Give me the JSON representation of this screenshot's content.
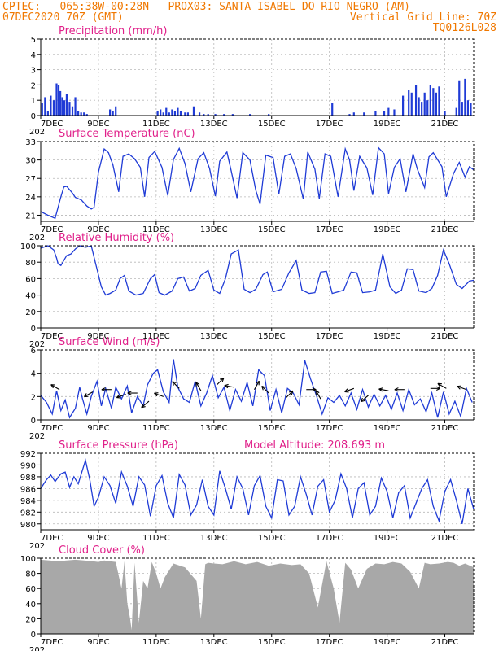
{
  "header": {
    "line1_left": "CPTEC:",
    "line1_coords": "065:38W-00:28N",
    "line1_site": "PROX03: SANTA ISABEL DO RIO NEGRO (AM)",
    "line2_left": "07DEC2020 70Z (GMT)",
    "line2_right": "Vertical Grid Line: 70Z",
    "line3_right": "TQ0126L028"
  },
  "colors": {
    "header": "#f07800",
    "title": "#e0208a",
    "series": "#1f3bd6",
    "cloud": "#a8a8a8"
  },
  "x_axis": {
    "labels": [
      "7DEC",
      "9DEC",
      "11DEC",
      "13DEC",
      "15DEC",
      "17DEC",
      "19DEC",
      "21DEC"
    ],
    "label_days": [
      0,
      2,
      4,
      6,
      8,
      10,
      12,
      14
    ],
    "ghost": "202",
    "xlim_days": [
      0,
      15
    ]
  },
  "chart_data": [
    {
      "id": "precip",
      "type": "bar",
      "title": "Precipitation (mm/h)",
      "ylim": [
        0,
        5
      ],
      "yticks": [
        0,
        1,
        2,
        3,
        4,
        5
      ],
      "x": [
        0.05,
        0.15,
        0.25,
        0.35,
        0.45,
        0.55,
        0.62,
        0.68,
        0.75,
        0.82,
        0.9,
        1.0,
        1.1,
        1.2,
        1.3,
        1.4,
        1.5,
        1.6,
        2.4,
        2.5,
        2.6,
        4.05,
        4.15,
        4.25,
        4.35,
        4.45,
        4.55,
        4.65,
        4.75,
        4.85,
        5.0,
        5.1,
        5.3,
        5.5,
        5.65,
        5.8,
        6.05,
        6.35,
        6.65,
        7.25,
        7.9,
        10.1,
        10.7,
        10.85,
        11.2,
        11.6,
        11.9,
        12.05,
        12.25,
        12.55,
        12.75,
        12.85,
        13.0,
        13.1,
        13.2,
        13.3,
        13.4,
        13.5,
        13.6,
        13.7,
        13.8,
        14.0,
        14.4,
        14.5,
        14.6,
        14.7,
        14.8,
        14.9
      ],
      "values": [
        0.8,
        1.2,
        0.3,
        1.3,
        1.0,
        2.1,
        2.0,
        1.6,
        1.2,
        1.0,
        1.4,
        0.9,
        0.6,
        1.2,
        0.3,
        0.2,
        0.2,
        0.1,
        0.4,
        0.3,
        0.6,
        0.3,
        0.4,
        0.2,
        0.5,
        0.2,
        0.4,
        0.3,
        0.5,
        0.3,
        0.2,
        0.2,
        0.6,
        0.2,
        0.1,
        0.1,
        0.1,
        0.1,
        0.1,
        0.1,
        0.1,
        0.8,
        0.1,
        0.2,
        0.2,
        0.3,
        0.3,
        0.5,
        0.4,
        1.3,
        1.7,
        1.5,
        2.0,
        1.2,
        0.9,
        1.5,
        1.0,
        2.0,
        1.8,
        1.5,
        1.9,
        0.3,
        0.5,
        2.3,
        0.9,
        2.4,
        1.0,
        0.8
      ]
    },
    {
      "id": "temp",
      "type": "line",
      "title": "Surface Temperature (nC)",
      "ylim": [
        20,
        33
      ],
      "yticks": [
        21,
        24,
        27,
        30,
        33
      ],
      "x": [
        0,
        0.25,
        0.5,
        0.7,
        0.8,
        0.9,
        1.1,
        1.2,
        1.4,
        1.6,
        1.75,
        1.85,
        2.0,
        2.2,
        2.35,
        2.5,
        2.7,
        2.85,
        3.05,
        3.25,
        3.45,
        3.6,
        3.75,
        3.95,
        4.2,
        4.4,
        4.6,
        4.8,
        5.0,
        5.2,
        5.45,
        5.65,
        5.85,
        6.05,
        6.2,
        6.45,
        6.6,
        6.8,
        7.0,
        7.25,
        7.45,
        7.6,
        7.8,
        8.05,
        8.25,
        8.45,
        8.65,
        8.85,
        9.1,
        9.25,
        9.5,
        9.65,
        9.85,
        10.05,
        10.3,
        10.55,
        10.7,
        10.85,
        11.05,
        11.3,
        11.5,
        11.7,
        11.9,
        12.05,
        12.25,
        12.45,
        12.65,
        12.9,
        13.05,
        13.3,
        13.45,
        13.6,
        13.9,
        14.05,
        14.3,
        14.5,
        14.7,
        14.85,
        15.0
      ],
      "values": [
        21.6,
        21.0,
        20.5,
        24.0,
        25.6,
        25.7,
        24.6,
        23.9,
        23.5,
        22.5,
        22.0,
        22.3,
        28.0,
        31.8,
        31.2,
        29.2,
        24.8,
        30.6,
        31.0,
        30.2,
        28.8,
        24.0,
        30.4,
        31.4,
        28.8,
        24.2,
        30.1,
        31.9,
        29.4,
        24.8,
        30.2,
        31.2,
        28.6,
        24.1,
        29.8,
        31.3,
        28.2,
        23.8,
        31.2,
        30.0,
        25.1,
        22.8,
        30.8,
        30.4,
        24.4,
        30.6,
        31.0,
        28.6,
        23.6,
        31.3,
        28.5,
        23.7,
        31.0,
        30.6,
        24.0,
        31.8,
        30.0,
        25.0,
        30.6,
        28.7,
        24.3,
        32.0,
        31.0,
        24.5,
        28.8,
        30.2,
        24.8,
        31.0,
        28.5,
        25.5,
        30.5,
        31.2,
        28.9,
        24.0,
        27.8,
        29.6,
        27.2,
        28.9,
        28.4
      ]
    },
    {
      "id": "rh",
      "type": "line",
      "title": "Relative Humidity (%)",
      "ylim": [
        0,
        100
      ],
      "yticks": [
        0,
        20,
        40,
        60,
        80,
        100
      ],
      "x": [
        0,
        0.25,
        0.45,
        0.55,
        0.6,
        0.7,
        0.9,
        1.05,
        1.2,
        1.35,
        1.55,
        1.75,
        2.1,
        2.25,
        2.4,
        2.6,
        2.75,
        2.9,
        3.05,
        3.3,
        3.55,
        3.8,
        3.95,
        4.1,
        4.3,
        4.55,
        4.75,
        4.95,
        5.15,
        5.35,
        5.55,
        5.8,
        6.0,
        6.2,
        6.4,
        6.6,
        6.85,
        7.05,
        7.25,
        7.45,
        7.7,
        7.85,
        8.05,
        8.35,
        8.6,
        8.85,
        9.05,
        9.3,
        9.5,
        9.7,
        9.9,
        10.1,
        10.3,
        10.5,
        10.75,
        10.95,
        11.15,
        11.4,
        11.6,
        11.85,
        12.1,
        12.3,
        12.5,
        12.7,
        12.9,
        13.1,
        13.35,
        13.55,
        13.75,
        13.95,
        14.15,
        14.4,
        14.6,
        14.85,
        15.0
      ],
      "values": [
        97,
        100,
        95,
        85,
        78,
        76,
        88,
        90,
        96,
        100,
        98,
        100,
        50,
        40,
        42,
        46,
        60,
        64,
        45,
        40,
        42,
        60,
        65,
        43,
        40,
        45,
        60,
        62,
        45,
        48,
        64,
        70,
        46,
        42,
        60,
        90,
        95,
        47,
        43,
        47,
        65,
        68,
        44,
        47,
        67,
        82,
        46,
        42,
        43,
        68,
        69,
        42,
        44,
        46,
        68,
        67,
        43,
        44,
        46,
        90,
        50,
        42,
        46,
        72,
        71,
        45,
        43,
        48,
        64,
        95,
        78,
        53,
        48,
        57,
        58
      ]
    },
    {
      "id": "wind",
      "type": "line",
      "title": "Surface Wind (m/s)",
      "ylim": [
        0,
        6
      ],
      "yticks": [
        0,
        2,
        4,
        6
      ],
      "x": [
        0,
        0.2,
        0.4,
        0.55,
        0.7,
        0.85,
        1.0,
        1.2,
        1.35,
        1.45,
        1.6,
        1.75,
        1.95,
        2.1,
        2.25,
        2.45,
        2.6,
        2.8,
        3.0,
        3.15,
        3.35,
        3.55,
        3.7,
        3.9,
        4.05,
        4.25,
        4.45,
        4.6,
        4.75,
        4.95,
        5.15,
        5.35,
        5.55,
        5.75,
        5.95,
        6.15,
        6.35,
        6.55,
        6.75,
        6.95,
        7.15,
        7.35,
        7.55,
        7.75,
        7.95,
        8.15,
        8.35,
        8.55,
        8.75,
        8.95,
        9.15,
        9.35,
        9.55,
        9.75,
        9.95,
        10.15,
        10.35,
        10.55,
        10.75,
        10.95,
        11.15,
        11.35,
        11.55,
        11.75,
        11.95,
        12.15,
        12.35,
        12.55,
        12.75,
        12.95,
        13.15,
        13.35,
        13.55,
        13.75,
        13.95,
        14.15,
        14.35,
        14.55,
        14.75,
        14.95
      ],
      "values": [
        2.1,
        1.5,
        0.5,
        2.5,
        0.8,
        1.7,
        0.2,
        1.0,
        2.8,
        1.8,
        0.5,
        2.0,
        3.3,
        1.2,
        2.7,
        1.0,
        2.8,
        1.8,
        2.9,
        0.6,
        2.0,
        1.2,
        3.0,
        4.0,
        4.3,
        2.4,
        1.5,
        5.2,
        2.8,
        1.8,
        1.5,
        3.3,
        1.2,
        2.3,
        3.8,
        1.9,
        2.8,
        0.8,
        2.6,
        1.6,
        3.2,
        1.2,
        4.3,
        3.8,
        0.8,
        2.6,
        0.6,
        2.7,
        2.3,
        1.3,
        5.1,
        3.5,
        2.1,
        0.5,
        1.9,
        1.5,
        2.1,
        1.2,
        2.3,
        0.9,
        2.6,
        1.1,
        2.2,
        1.2,
        2.1,
        0.9,
        2.3,
        0.8,
        2.6,
        1.3,
        1.8,
        0.7,
        2.3,
        0.2,
        2.4,
        0.5,
        1.6,
        0.3,
        2.7,
        1.5
      ],
      "barbs": [
        {
          "x": 0.65,
          "y": 2.6,
          "ang": 150
        },
        {
          "x": 1.8,
          "y": 2.4,
          "ang": 210
        },
        {
          "x": 2.45,
          "y": 2.6,
          "ang": 180
        },
        {
          "x": 2.95,
          "y": 2.2,
          "ang": 200
        },
        {
          "x": 3.35,
          "y": 2.3,
          "ang": 180
        },
        {
          "x": 3.75,
          "y": 1.6,
          "ang": 220
        },
        {
          "x": 4.25,
          "y": 2.0,
          "ang": 160
        },
        {
          "x": 4.8,
          "y": 2.7,
          "ang": 135
        },
        {
          "x": 5.55,
          "y": 2.5,
          "ang": 120
        },
        {
          "x": 6.1,
          "y": 3.0,
          "ang": 45
        },
        {
          "x": 6.7,
          "y": 2.8,
          "ang": 170
        },
        {
          "x": 7.4,
          "y": 2.6,
          "ang": 60
        },
        {
          "x": 7.9,
          "y": 2.3,
          "ang": 135
        },
        {
          "x": 8.5,
          "y": 1.9,
          "ang": 45
        },
        {
          "x": 9.2,
          "y": 2.6,
          "ang": 0
        },
        {
          "x": 9.7,
          "y": 1.8,
          "ang": 120
        },
        {
          "x": 10.85,
          "y": 2.7,
          "ang": 200
        },
        {
          "x": 11.35,
          "y": 2.1,
          "ang": 220
        },
        {
          "x": 12.05,
          "y": 2.5,
          "ang": 170
        },
        {
          "x": 12.6,
          "y": 2.6,
          "ang": 180
        },
        {
          "x": 13.5,
          "y": 2.7,
          "ang": 0
        },
        {
          "x": 14.05,
          "y": 2.7,
          "ang": 150
        },
        {
          "x": 14.75,
          "y": 2.6,
          "ang": 160
        }
      ]
    },
    {
      "id": "pressure",
      "type": "line",
      "title": "Surface Pressure (hPa)",
      "annotation": "Model Altitude: 208.693 m",
      "ylim": [
        979,
        992
      ],
      "yticks": [
        980,
        982,
        984,
        986,
        988,
        990,
        992
      ],
      "x": [
        0,
        0.2,
        0.35,
        0.5,
        0.7,
        0.85,
        1.0,
        1.15,
        1.3,
        1.55,
        1.7,
        1.85,
        2.0,
        2.2,
        2.4,
        2.6,
        2.8,
        3.0,
        3.2,
        3.4,
        3.6,
        3.8,
        4.0,
        4.2,
        4.4,
        4.6,
        4.8,
        5.0,
        5.2,
        5.4,
        5.6,
        5.8,
        6.0,
        6.2,
        6.4,
        6.6,
        6.8,
        7.0,
        7.2,
        7.4,
        7.6,
        7.8,
        8.0,
        8.2,
        8.4,
        8.6,
        8.8,
        9.0,
        9.2,
        9.4,
        9.6,
        9.8,
        10.0,
        10.2,
        10.4,
        10.6,
        10.8,
        11.0,
        11.2,
        11.4,
        11.6,
        11.8,
        12.0,
        12.2,
        12.4,
        12.6,
        12.8,
        13.0,
        13.2,
        13.4,
        13.6,
        13.8,
        14.0,
        14.2,
        14.4,
        14.6,
        14.8,
        15.0
      ],
      "values": [
        986,
        987.5,
        988.3,
        987.2,
        988.5,
        988.8,
        986.2,
        988.0,
        986.8,
        990.8,
        987.5,
        983.0,
        984.5,
        988.0,
        986.5,
        983.5,
        988.8,
        986.4,
        983.0,
        988.0,
        986.6,
        981.3,
        986.5,
        988.2,
        983.5,
        981.0,
        988.4,
        986.6,
        981.5,
        983.2,
        987.5,
        983.0,
        981.5,
        989.0,
        986.0,
        982.5,
        988.0,
        986.0,
        981.5,
        986.5,
        988.2,
        983.0,
        981.0,
        987.5,
        987.3,
        981.5,
        983.0,
        988.0,
        985.0,
        981.5,
        986.4,
        987.5,
        982.0,
        984.0,
        988.5,
        986.0,
        981.0,
        986.0,
        987.0,
        981.5,
        983.0,
        987.8,
        985.5,
        981.0,
        985.3,
        986.5,
        981.0,
        983.5,
        986.0,
        987.5,
        983.0,
        980.5,
        985.5,
        987.5,
        984.0,
        980.0,
        986.0,
        982.5
      ]
    },
    {
      "id": "cloud",
      "type": "area",
      "title": "Cloud Cover (%)",
      "ylim": [
        0,
        100
      ],
      "yticks": [
        0,
        20,
        40,
        60,
        80,
        100
      ],
      "x": [
        0,
        0.3,
        0.6,
        0.9,
        1.2,
        1.5,
        1.8,
        2.0,
        2.2,
        2.4,
        2.6,
        2.8,
        2.9,
        3.0,
        3.1,
        3.15,
        3.25,
        3.4,
        3.55,
        3.7,
        3.85,
        4.0,
        4.15,
        4.3,
        4.6,
        5.0,
        5.4,
        5.55,
        5.7,
        5.8,
        6.0,
        6.3,
        6.7,
        7.1,
        7.5,
        7.9,
        8.3,
        8.7,
        9.0,
        9.3,
        9.6,
        9.9,
        10.15,
        10.35,
        10.55,
        10.75,
        11.0,
        11.3,
        11.6,
        11.9,
        12.2,
        12.5,
        12.8,
        13.1,
        13.3,
        13.5,
        13.8,
        14.1,
        14.3,
        14.5,
        14.7,
        15.0
      ],
      "values": [
        98,
        97,
        96,
        97,
        98,
        97,
        96,
        95,
        97,
        96,
        95,
        60,
        96,
        40,
        20,
        5,
        94,
        15,
        70,
        60,
        95,
        80,
        60,
        75,
        93,
        88,
        70,
        20,
        92,
        94,
        93,
        92,
        96,
        92,
        95,
        90,
        93,
        91,
        92,
        80,
        35,
        96,
        60,
        15,
        94,
        85,
        60,
        86,
        93,
        92,
        95,
        93,
        82,
        60,
        94,
        92,
        93,
        95,
        94,
        90,
        93,
        88
      ]
    }
  ]
}
